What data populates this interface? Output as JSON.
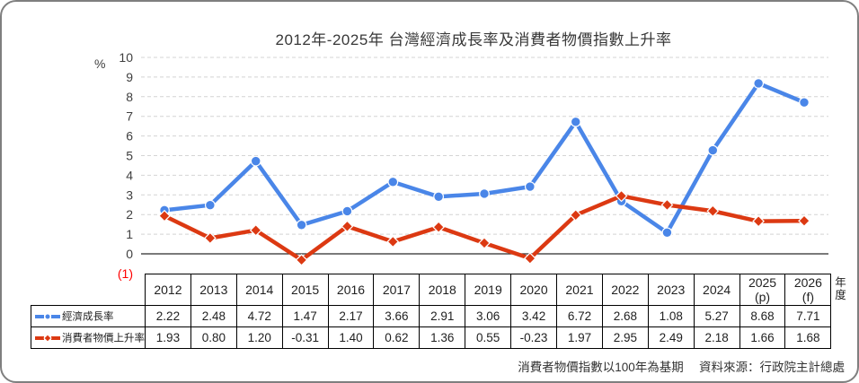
{
  "card": {
    "title": "2012年-2025年 台灣經濟成長率及消費者物價指數上升率",
    "footer_note": "消費者物價指數以100年為基期　 資料來源：行政院主計總處"
  },
  "chart_data": {
    "type": "line",
    "title": "2012年-2025年 台灣經濟成長率及消費者物價指數上升率",
    "y_axis_unit": "%",
    "x_axis_unit": "年度",
    "ylim": [
      -1,
      10
    ],
    "grid": "horizontal-dashed",
    "legend_position": "table-left-column",
    "negative_tick_color": "#ff0000",
    "categories": [
      "2012",
      "2013",
      "2014",
      "2015",
      "2016",
      "2017",
      "2018",
      "2019",
      "2020",
      "2021",
      "2022",
      "2023",
      "2024",
      "2025 (p)",
      "2026 (f)"
    ],
    "y_ticks": [
      {
        "v": 10,
        "label": "10"
      },
      {
        "v": 9,
        "label": "9"
      },
      {
        "v": 8,
        "label": "8"
      },
      {
        "v": 7,
        "label": "7"
      },
      {
        "v": 6,
        "label": "6"
      },
      {
        "v": 5,
        "label": "5"
      },
      {
        "v": 4,
        "label": "4"
      },
      {
        "v": 3,
        "label": "3"
      },
      {
        "v": 2,
        "label": "2"
      },
      {
        "v": 1,
        "label": "1"
      },
      {
        "v": 0,
        "label": "0"
      },
      {
        "v": -1,
        "label": "(1)",
        "color": "#ff0000"
      }
    ],
    "series": [
      {
        "key": "gdp",
        "name": "經濟成長率",
        "color": "#4a86e8",
        "marker": "circle",
        "values": [
          2.22,
          2.48,
          4.72,
          1.47,
          2.17,
          3.66,
          2.91,
          3.06,
          3.42,
          6.72,
          2.68,
          1.08,
          5.27,
          8.68,
          7.71
        ]
      },
      {
        "key": "cpi",
        "name": "消費者物價上升率",
        "color": "#dc3912",
        "marker": "diamond",
        "values": [
          1.93,
          0.8,
          1.2,
          -0.31,
          1.4,
          0.62,
          1.36,
          0.55,
          -0.23,
          1.97,
          2.95,
          2.49,
          2.18,
          1.66,
          1.68
        ]
      }
    ]
  }
}
